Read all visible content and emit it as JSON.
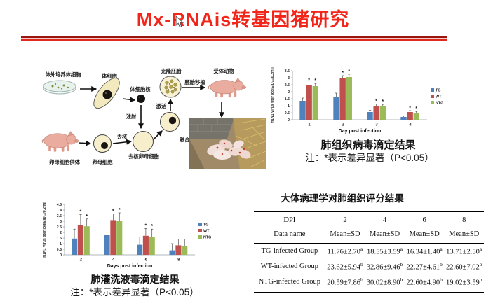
{
  "slide": {
    "title": "Mx-RNAis转基因猪研究",
    "colors": {
      "title_red": "#F2251A",
      "rule_red": "#E02A1E",
      "rule_dark_red": "#99150F"
    }
  },
  "diagram": {
    "labels": {
      "cultured_cells": "体外培养体细胞",
      "somatic_cell": "体细胞",
      "somatic_nucleus": "体细胞核",
      "injection": "注射",
      "cloned_embryo": "克隆胚胎",
      "embryo_transfer": "胚胎移植",
      "recipient_animal": "受体动物",
      "activation": "激活",
      "fusion": "融合",
      "enucleation": "去核",
      "enucleated_oocyte": "去核卵母细胞",
      "oocyte": "卵母细胞",
      "oocyte_donor": "卵母细胞供体"
    }
  },
  "captions": {
    "lung_note": "注：*表示差异显著（P<0.05）",
    "lavage_note": "注：*表示差异显著（P<0.05）"
  },
  "chart_data": [
    {
      "type": "bar",
      "title": "肺组织病毒滴定结果",
      "xlabel": "Day post infection",
      "ylabel": "H1N1 Virus titer log(EID₅₀/0.2ml)",
      "categories": [
        "1",
        "2",
        "3",
        "4"
      ],
      "ylim": [
        0,
        3.5
      ],
      "ytick_step": 0.5,
      "grid": false,
      "legend_position": "right",
      "series": [
        {
          "name": "TG",
          "color": "#4F81BD",
          "values": [
            1.35,
            1.65,
            0.55,
            0.2
          ],
          "errors": [
            0.2,
            0.25,
            0.12,
            0.08
          ],
          "significant": [
            false,
            false,
            false,
            false
          ]
        },
        {
          "name": "WT",
          "color": "#C0504D",
          "values": [
            2.5,
            3.0,
            1.0,
            0.55
          ],
          "errors": [
            0.12,
            0.15,
            0.12,
            0.1
          ],
          "significant": [
            true,
            true,
            true,
            true
          ]
        },
        {
          "name": "NTG",
          "color": "#9BBB59",
          "values": [
            2.4,
            3.05,
            0.95,
            0.5
          ],
          "errors": [
            0.2,
            0.2,
            0.15,
            0.1
          ],
          "significant": [
            true,
            true,
            true,
            true
          ]
        }
      ]
    },
    {
      "type": "bar",
      "title": "肺灌洗液毒滴定结果",
      "xlabel": "Days post infection",
      "ylabel": "H1N1 Virus titer log(EID₅₀/0.2ml)",
      "categories": [
        "2",
        "4",
        "6",
        "8"
      ],
      "ylim": [
        0,
        4.5
      ],
      "ytick_step": 0.5,
      "grid": false,
      "legend_position": "right",
      "series": [
        {
          "name": "TG",
          "color": "#4F81BD",
          "values": [
            1.45,
            1.75,
            0.9,
            0.4
          ],
          "errors": [
            0.85,
            0.65,
            0.7,
            0.6
          ],
          "significant": [
            false,
            false,
            false,
            false
          ]
        },
        {
          "name": "WT",
          "color": "#C0504D",
          "values": [
            2.65,
            3.1,
            1.7,
            0.85
          ],
          "errors": [
            0.95,
            0.55,
            0.65,
            0.55
          ],
          "significant": [
            true,
            true,
            true,
            false
          ]
        },
        {
          "name": "NTG",
          "color": "#9BBB59",
          "values": [
            2.55,
            3.0,
            1.6,
            0.75
          ],
          "errors": [
            0.65,
            0.75,
            0.7,
            0.65
          ],
          "significant": [
            true,
            true,
            true,
            false
          ]
        }
      ]
    }
  ],
  "table": {
    "title": "大体病理学对肺组织评分结果",
    "col_header_top": [
      "DPI",
      "2",
      "4",
      "6",
      "8"
    ],
    "col_header_bottom": [
      "Data name",
      "Mean±SD",
      "Mean±SD",
      "Mean±SD",
      "Mean±SD"
    ],
    "rows": [
      {
        "group": "TG-infected Group",
        "cells": [
          {
            "v": "11.76±2.70",
            "sup": "a"
          },
          {
            "v": "18.55±3.59",
            "sup": "a"
          },
          {
            "v": "16.34±1.40",
            "sup": "a"
          },
          {
            "v": "13.71±2.50",
            "sup": "a"
          }
        ]
      },
      {
        "group": "WT-infected Group",
        "cells": [
          {
            "v": "23.62±5.94",
            "sup": "b"
          },
          {
            "v": "32.86±9.46",
            "sup": "b"
          },
          {
            "v": "22.27±4.61",
            "sup": "b"
          },
          {
            "v": "22.60±7.02",
            "sup": "b"
          }
        ]
      },
      {
        "group": "NTG-infected Group",
        "cells": [
          {
            "v": "20.59±7.86",
            "sup": "b"
          },
          {
            "v": "30.02±8.90",
            "sup": "b"
          },
          {
            "v": "22.60±4.90",
            "sup": "b"
          },
          {
            "v": "19.02±3.59",
            "sup": "b"
          }
        ]
      }
    ]
  }
}
